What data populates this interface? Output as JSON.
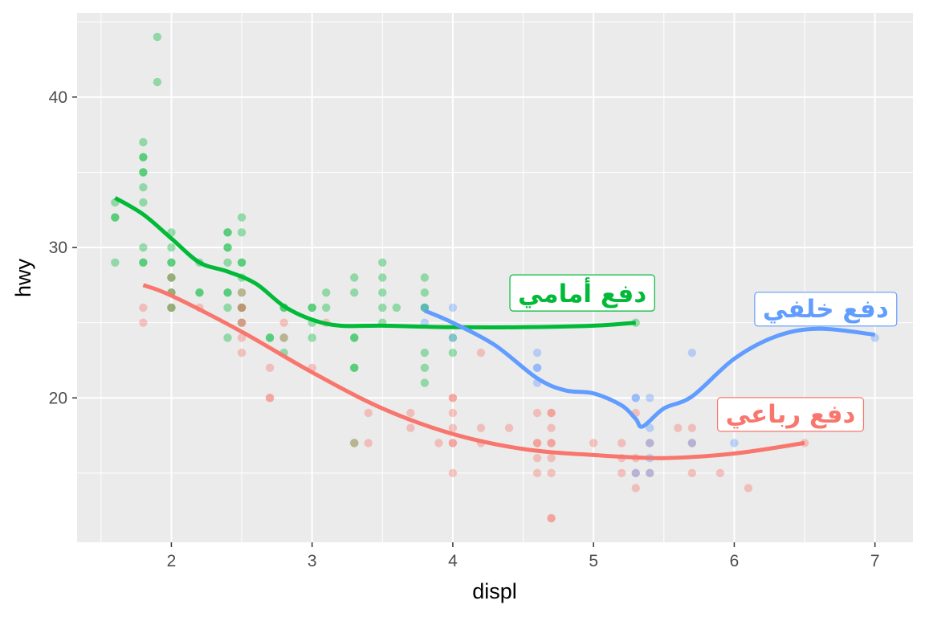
{
  "chart_data": {
    "type": "scatter",
    "title": "",
    "xlabel": "displ",
    "ylabel": "hwy",
    "xlim": [
      1.33,
      7.27
    ],
    "ylim": [
      10.4,
      45.6
    ],
    "x_ticks": [
      2,
      3,
      4,
      5,
      6,
      7
    ],
    "y_ticks": [
      20,
      30,
      40
    ],
    "grid": true,
    "background": "#ebebeb",
    "series": [
      {
        "name": "دفع أمامي",
        "color": "#00ba38",
        "points": [
          [
            1.6,
            33
          ],
          [
            1.6,
            32
          ],
          [
            1.6,
            32
          ],
          [
            1.6,
            29
          ],
          [
            1.8,
            37
          ],
          [
            1.8,
            36
          ],
          [
            1.8,
            36
          ],
          [
            1.8,
            35
          ],
          [
            1.8,
            35
          ],
          [
            1.8,
            34
          ],
          [
            1.8,
            33
          ],
          [
            1.8,
            30
          ],
          [
            1.8,
            29
          ],
          [
            1.8,
            29
          ],
          [
            1.9,
            44
          ],
          [
            1.9,
            41
          ],
          [
            2.0,
            31
          ],
          [
            2.0,
            30
          ],
          [
            2.0,
            29
          ],
          [
            2.0,
            29
          ],
          [
            2.0,
            28
          ],
          [
            2.0,
            28
          ],
          [
            2.0,
            27
          ],
          [
            2.0,
            27
          ],
          [
            2.0,
            26
          ],
          [
            2.0,
            26
          ],
          [
            2.2,
            29
          ],
          [
            2.2,
            27
          ],
          [
            2.2,
            27
          ],
          [
            2.4,
            31
          ],
          [
            2.4,
            31
          ],
          [
            2.4,
            30
          ],
          [
            2.4,
            30
          ],
          [
            2.4,
            29
          ],
          [
            2.4,
            27
          ],
          [
            2.4,
            27
          ],
          [
            2.4,
            26
          ],
          [
            2.4,
            24
          ],
          [
            2.5,
            32
          ],
          [
            2.5,
            31
          ],
          [
            2.5,
            29
          ],
          [
            2.5,
            29
          ],
          [
            2.5,
            28
          ],
          [
            2.5,
            27
          ],
          [
            2.5,
            26
          ],
          [
            2.5,
            26
          ],
          [
            2.5,
            25
          ],
          [
            2.7,
            24
          ],
          [
            2.7,
            24
          ],
          [
            2.8,
            26
          ],
          [
            2.8,
            26
          ],
          [
            2.8,
            24
          ],
          [
            2.8,
            23
          ],
          [
            3.0,
            26
          ],
          [
            3.0,
            26
          ],
          [
            3.0,
            25
          ],
          [
            3.0,
            24
          ],
          [
            3.1,
            27
          ],
          [
            3.1,
            26
          ],
          [
            3.3,
            28
          ],
          [
            3.3,
            27
          ],
          [
            3.3,
            24
          ],
          [
            3.3,
            24
          ],
          [
            3.3,
            22
          ],
          [
            3.3,
            22
          ],
          [
            3.3,
            17
          ],
          [
            3.5,
            29
          ],
          [
            3.5,
            28
          ],
          [
            3.5,
            27
          ],
          [
            3.5,
            26
          ],
          [
            3.5,
            25
          ],
          [
            3.6,
            26
          ],
          [
            3.8,
            28
          ],
          [
            3.8,
            27
          ],
          [
            3.8,
            26
          ],
          [
            3.8,
            26
          ],
          [
            3.8,
            23
          ],
          [
            3.8,
            22
          ],
          [
            3.8,
            21
          ],
          [
            4.0,
            24
          ],
          [
            4.0,
            23
          ],
          [
            5.3,
            25
          ]
        ],
        "smooth": [
          [
            1.6,
            33.3
          ],
          [
            1.8,
            32.2
          ],
          [
            2.0,
            30.6
          ],
          [
            2.2,
            29.0
          ],
          [
            2.4,
            28.4
          ],
          [
            2.6,
            27.6
          ],
          [
            2.8,
            26.1
          ],
          [
            3.0,
            25.2
          ],
          [
            3.2,
            24.8
          ],
          [
            3.5,
            24.8
          ],
          [
            4.0,
            24.7
          ],
          [
            4.5,
            24.7
          ],
          [
            5.0,
            24.8
          ],
          [
            5.3,
            25.0
          ]
        ]
      },
      {
        "name": "دفع رباعي",
        "color": "#f8766d",
        "points": [
          [
            1.8,
            26
          ],
          [
            1.8,
            25
          ],
          [
            2.0,
            28
          ],
          [
            2.0,
            27
          ],
          [
            2.0,
            26
          ],
          [
            2.2,
            26
          ],
          [
            2.5,
            27
          ],
          [
            2.5,
            26
          ],
          [
            2.5,
            26
          ],
          [
            2.5,
            25
          ],
          [
            2.5,
            25
          ],
          [
            2.5,
            24
          ],
          [
            2.5,
            23
          ],
          [
            2.7,
            22
          ],
          [
            2.7,
            20
          ],
          [
            2.7,
            20
          ],
          [
            2.8,
            25
          ],
          [
            2.8,
            24
          ],
          [
            3.0,
            22
          ],
          [
            3.1,
            25
          ],
          [
            3.3,
            17
          ],
          [
            3.4,
            19
          ],
          [
            3.4,
            17
          ],
          [
            3.7,
            19
          ],
          [
            3.7,
            18
          ],
          [
            3.9,
            17
          ],
          [
            4.0,
            20
          ],
          [
            4.0,
            20
          ],
          [
            4.0,
            19
          ],
          [
            4.0,
            18
          ],
          [
            4.0,
            17
          ],
          [
            4.0,
            17
          ],
          [
            4.0,
            15
          ],
          [
            4.2,
            23
          ],
          [
            4.2,
            18
          ],
          [
            4.2,
            17
          ],
          [
            4.4,
            18
          ],
          [
            4.6,
            19
          ],
          [
            4.6,
            17
          ],
          [
            4.6,
            17
          ],
          [
            4.6,
            16
          ],
          [
            4.6,
            15
          ],
          [
            4.7,
            19
          ],
          [
            4.7,
            19
          ],
          [
            4.7,
            18
          ],
          [
            4.7,
            17
          ],
          [
            4.7,
            17
          ],
          [
            4.7,
            16
          ],
          [
            4.7,
            15
          ],
          [
            4.7,
            12
          ],
          [
            4.7,
            12
          ],
          [
            5.0,
            17
          ],
          [
            5.2,
            17
          ],
          [
            5.2,
            16
          ],
          [
            5.2,
            15
          ],
          [
            5.3,
            19
          ],
          [
            5.3,
            16
          ],
          [
            5.3,
            15
          ],
          [
            5.3,
            14
          ],
          [
            5.4,
            17
          ],
          [
            5.4,
            15
          ],
          [
            5.6,
            18
          ],
          [
            5.7,
            18
          ],
          [
            5.7,
            17
          ],
          [
            5.7,
            15
          ],
          [
            5.9,
            15
          ],
          [
            6.1,
            14
          ],
          [
            6.5,
            17
          ]
        ],
        "smooth": [
          [
            1.8,
            27.5
          ],
          [
            2.0,
            26.8
          ],
          [
            2.5,
            24.4
          ],
          [
            3.0,
            21.7
          ],
          [
            3.5,
            19.3
          ],
          [
            4.0,
            17.6
          ],
          [
            4.5,
            16.6
          ],
          [
            5.0,
            16.2
          ],
          [
            5.5,
            16.0
          ],
          [
            6.0,
            16.3
          ],
          [
            6.5,
            17.0
          ]
        ]
      },
      {
        "name": "دفع خلفي",
        "color": "#619cff",
        "points": [
          [
            3.8,
            26
          ],
          [
            3.8,
            25
          ],
          [
            4.0,
            26
          ],
          [
            4.0,
            24
          ],
          [
            4.6,
            23
          ],
          [
            4.6,
            22
          ],
          [
            4.6,
            22
          ],
          [
            4.6,
            21
          ],
          [
            5.3,
            20
          ],
          [
            5.3,
            20
          ],
          [
            5.3,
            15
          ],
          [
            5.4,
            20
          ],
          [
            5.4,
            18
          ],
          [
            5.4,
            17
          ],
          [
            5.4,
            16
          ],
          [
            5.4,
            15
          ],
          [
            5.7,
            23
          ],
          [
            5.7,
            17
          ],
          [
            6.0,
            17
          ],
          [
            7.0,
            24
          ]
        ],
        "smooth": [
          [
            3.8,
            25.8
          ],
          [
            4.0,
            25.0
          ],
          [
            4.3,
            23.5
          ],
          [
            4.6,
            21.3
          ],
          [
            4.8,
            20.5
          ],
          [
            5.0,
            20.3
          ],
          [
            5.2,
            19.5
          ],
          [
            5.3,
            18.6
          ],
          [
            5.35,
            18.1
          ],
          [
            5.5,
            19.3
          ],
          [
            5.7,
            20.1
          ],
          [
            6.0,
            22.6
          ],
          [
            6.3,
            24.1
          ],
          [
            6.6,
            24.6
          ],
          [
            7.0,
            24.2
          ]
        ]
      }
    ],
    "annotations": [
      {
        "text": "دفع أمامي",
        "x": 4.92,
        "y": 26.9,
        "color": "#00ba38"
      },
      {
        "text": "دفع خلفي",
        "x": 6.65,
        "y": 25.9,
        "color": "#619cff"
      },
      {
        "text": "دفع رباعي",
        "x": 6.4,
        "y": 18.9,
        "color": "#f8766d"
      }
    ]
  }
}
